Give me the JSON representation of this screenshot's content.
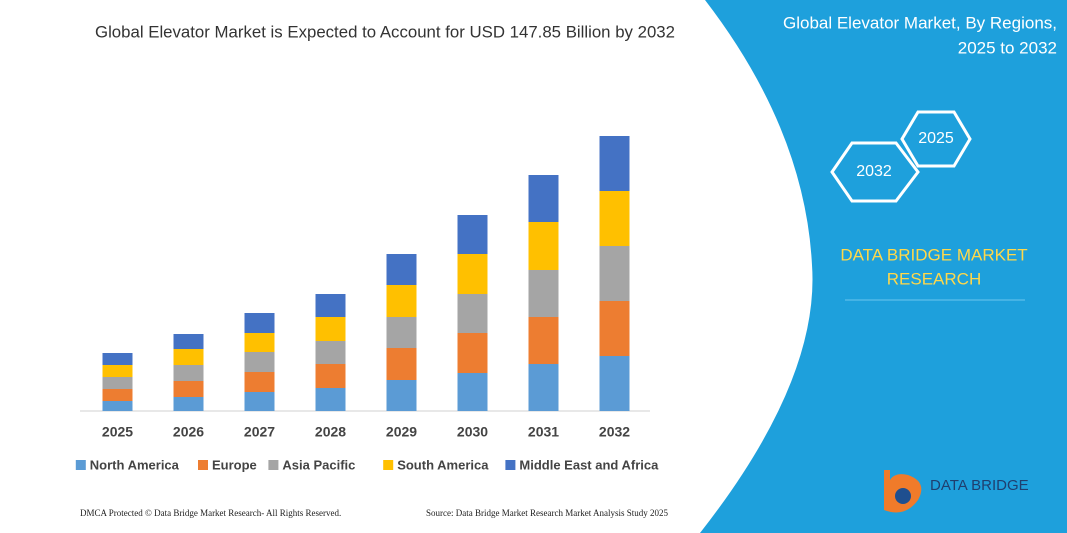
{
  "chart_data": {
    "type": "stacked_bar",
    "title": "Global Elevator Market is Expected to Account for USD 147.85 Billion by 2032",
    "categories": [
      "2025",
      "2026",
      "2027",
      "2028",
      "2029",
      "2030",
      "2031",
      "2032"
    ],
    "series": [
      {
        "name": "North America",
        "color": "#5b9bd5",
        "values": [
          10,
          14,
          19,
          23,
          31,
          38,
          47,
          55
        ]
      },
      {
        "name": "Europe",
        "color": "#ed7d31",
        "values": [
          12,
          16,
          20,
          24,
          32,
          40,
          47,
          55
        ]
      },
      {
        "name": "Asia Pacific",
        "color": "#a5a5a5",
        "values": [
          12,
          16,
          20,
          23,
          31,
          39,
          47,
          55
        ]
      },
      {
        "name": "South America",
        "color": "#ffc000",
        "values": [
          12,
          16,
          19,
          24,
          32,
          40,
          48,
          55
        ]
      },
      {
        "name": "Middle East and Africa",
        "color": "#4472c4",
        "values": [
          12,
          15,
          20,
          23,
          31,
          39,
          47,
          55
        ]
      }
    ],
    "ylim": [
      0,
      275
    ]
  },
  "panel": {
    "title_line1": "Global Elevator Market, By Regions,",
    "title_line2": "2025 to 2032",
    "hex_right": "2025",
    "hex_left": "2032",
    "brand_line1": "DATA BRIDGE MARKET",
    "brand_line2": "RESEARCH",
    "logo": "DATA BRIDGE"
  },
  "footer": {
    "left": "DMCA Protected © Data Bridge Market Research-  All Rights Reserved.",
    "right": "Source: Data Bridge Market Research  Market Analysis Study 2025"
  }
}
